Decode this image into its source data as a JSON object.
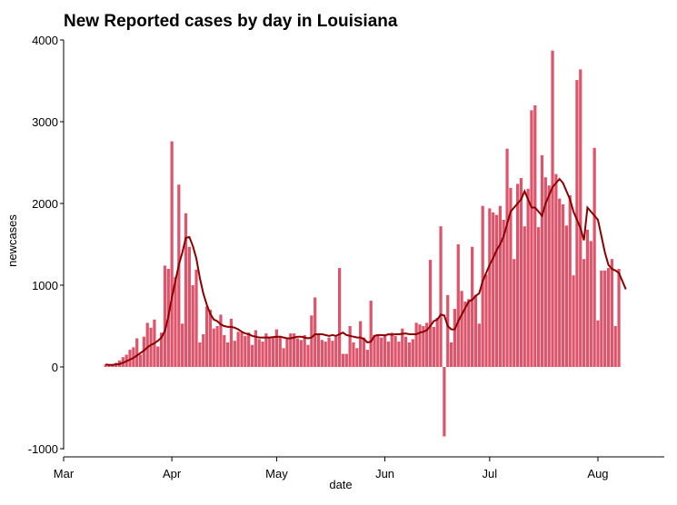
{
  "chart_data": {
    "type": "bar",
    "title": "New Reported cases by day in Louisiana",
    "xlabel": "date",
    "ylabel": "newcases",
    "ylim": [
      -1000,
      4000
    ],
    "yticks": [
      -1000,
      0,
      1000,
      2000,
      3000,
      4000
    ],
    "x_start": "2020-03-01",
    "x_end": "2020-08-20",
    "xticks": [
      {
        "label": "Mar",
        "date": "2020-03-01"
      },
      {
        "label": "Apr",
        "date": "2020-04-01"
      },
      {
        "label": "May",
        "date": "2020-05-01"
      },
      {
        "label": "Jun",
        "date": "2020-06-01"
      },
      {
        "label": "Jul",
        "date": "2020-07-01"
      },
      {
        "label": "Aug",
        "date": "2020-08-01"
      }
    ],
    "grid": false,
    "colors": {
      "bars": "#de546b",
      "rolling_line": "#8b0000"
    },
    "series": [
      {
        "type": "bar",
        "start_date": "2020-03-13",
        "values": [
          30,
          30,
          20,
          50,
          80,
          120,
          150,
          210,
          240,
          350,
          150,
          370,
          540,
          480,
          580,
          250,
          420,
          1240,
          1200,
          2760,
          1100,
          2230,
          530,
          1880,
          1470,
          1000,
          1190,
          300,
          400,
          740,
          700,
          470,
          500,
          640,
          390,
          300,
          590,
          320,
          430,
          420,
          380,
          420,
          270,
          450,
          340,
          310,
          410,
          360,
          370,
          460,
          380,
          230,
          340,
          410,
          410,
          350,
          330,
          390,
          270,
          630,
          850,
          400,
          330,
          310,
          360,
          320,
          370,
          1210,
          160,
          160,
          500,
          300,
          230,
          560,
          360,
          210,
          810,
          390,
          400,
          360,
          400,
          310,
          420,
          380,
          310,
          470,
          370,
          300,
          340,
          540,
          520,
          500,
          540,
          1310,
          490,
          600,
          1720,
          -850,
          880,
          300,
          710,
          1500,
          930,
          800,
          830,
          1470,
          880,
          530,
          1970,
          1130,
          1940,
          1890,
          1860,
          1970,
          1800,
          2670,
          2190,
          1320,
          2240,
          2310,
          1720,
          2180,
          3140,
          3200,
          1710,
          2590,
          2320,
          2220,
          3870,
          2360,
          2060,
          1990,
          1730,
          2100,
          1120,
          3510,
          3640,
          1320,
          1680,
          1540,
          2680,
          570,
          1180,
          1180,
          1210,
          1320,
          500,
          1200
        ]
      }
    ],
    "rolling_average": {
      "name": "",
      "start_date": "2020-03-13",
      "values": [
        30,
        25,
        25,
        30,
        35,
        50,
        70,
        90,
        110,
        140,
        170,
        200,
        240,
        270,
        290,
        320,
        360,
        440,
        620,
        850,
        1050,
        1250,
        1400,
        1580,
        1590,
        1480,
        1330,
        1090,
        900,
        760,
        650,
        580,
        560,
        520,
        500,
        490,
        490,
        480,
        460,
        430,
        410,
        400,
        380,
        370,
        360,
        360,
        360,
        360,
        365,
        370,
        370,
        360,
        350,
        350,
        360,
        370,
        370,
        360,
        350,
        360,
        400,
        400,
        400,
        390,
        380,
        390,
        380,
        400,
        420,
        390,
        380,
        370,
        360,
        360,
        340,
        300,
        310,
        380,
        390,
        390,
        385,
        400,
        395,
        400,
        400,
        405,
        410,
        400,
        400,
        400,
        420,
        430,
        450,
        500,
        560,
        580,
        640,
        630,
        500,
        460,
        460,
        560,
        640,
        720,
        800,
        820,
        870,
        900,
        1050,
        1150,
        1250,
        1330,
        1430,
        1500,
        1600,
        1750,
        1900,
        1950,
        2000,
        2050,
        2150,
        2050,
        1950,
        1950,
        1900,
        1850,
        2000,
        2100,
        2200,
        2250,
        2300,
        2250,
        2150,
        2050,
        1900,
        1800,
        1700,
        1550,
        1950,
        1900,
        1850,
        1800,
        1600,
        1400,
        1250,
        1200,
        1180,
        1150,
        1050,
        950
      ]
    }
  }
}
